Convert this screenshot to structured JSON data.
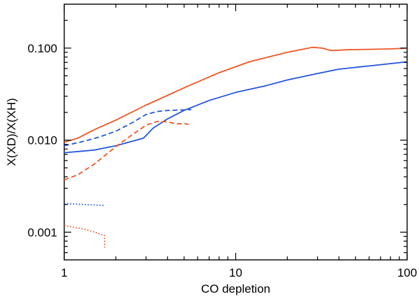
{
  "chart_data": {
    "type": "line",
    "title": "",
    "xlabel": "CO depletion",
    "ylabel": "X(XD)/X(XH)",
    "xscale": "log",
    "yscale": "log",
    "xlim": [
      1,
      100
    ],
    "ylim": [
      0.0005,
      0.3
    ],
    "grid": false,
    "legend": "none",
    "xticks": [
      {
        "value": 1,
        "label": "1"
      },
      {
        "value": 10,
        "label": "10"
      },
      {
        "value": 100,
        "label": "100"
      }
    ],
    "yticks": [
      {
        "value": 0.001,
        "label": "0.001"
      },
      {
        "value": 0.01,
        "label": "0.010"
      },
      {
        "value": 0.1,
        "label": "0.100"
      }
    ],
    "series": [
      {
        "name": "red-solid",
        "color": "#ee5522",
        "dash": "solid",
        "x": [
          1,
          1.2,
          1.5,
          2,
          3,
          5,
          8,
          12,
          20,
          28,
          32,
          36,
          45,
          60,
          80,
          100
        ],
        "y": [
          0.0095,
          0.0105,
          0.013,
          0.0165,
          0.024,
          0.037,
          0.054,
          0.071,
          0.09,
          0.102,
          0.1,
          0.094,
          0.096,
          0.097,
          0.098,
          0.1
        ]
      },
      {
        "name": "blue-solid",
        "color": "#2255dd",
        "dash": "solid",
        "x": [
          1,
          1.5,
          2,
          2.9,
          3.3,
          4,
          5,
          7,
          10,
          15,
          20,
          30,
          40,
          60,
          100
        ],
        "y": [
          0.0073,
          0.0078,
          0.0087,
          0.0105,
          0.0135,
          0.017,
          0.021,
          0.027,
          0.033,
          0.039,
          0.045,
          0.053,
          0.059,
          0.064,
          0.071
        ]
      },
      {
        "name": "blue-dashed",
        "color": "#2255dd",
        "dash": "dashed",
        "x": [
          1,
          1.3,
          1.6,
          2,
          2.5,
          3,
          3.5,
          4,
          4.5,
          5,
          5.5
        ],
        "y": [
          0.0087,
          0.0097,
          0.0108,
          0.0125,
          0.0155,
          0.019,
          0.0205,
          0.021,
          0.0212,
          0.0213,
          0.0215
        ]
      },
      {
        "name": "red-dashed",
        "color": "#ee5522",
        "dash": "dashed",
        "x": [
          1,
          1.2,
          1.5,
          2,
          2.5,
          3,
          3.5,
          4,
          4.5,
          5,
          5.3
        ],
        "y": [
          0.0037,
          0.0042,
          0.0055,
          0.0085,
          0.0115,
          0.0145,
          0.016,
          0.0158,
          0.015,
          0.0152,
          0.0148
        ]
      },
      {
        "name": "blue-dotted",
        "color": "#2255dd",
        "dash": "dotted",
        "x": [
          1,
          1.3,
          1.72
        ],
        "y": [
          0.00205,
          0.002,
          0.00195
        ]
      },
      {
        "name": "red-dotted",
        "color": "#ee5522",
        "dash": "dotted",
        "x": [
          1,
          1.3,
          1.5,
          1.72,
          1.72
        ],
        "y": [
          0.00118,
          0.00108,
          0.001,
          0.00092,
          0.00068
        ]
      }
    ]
  }
}
